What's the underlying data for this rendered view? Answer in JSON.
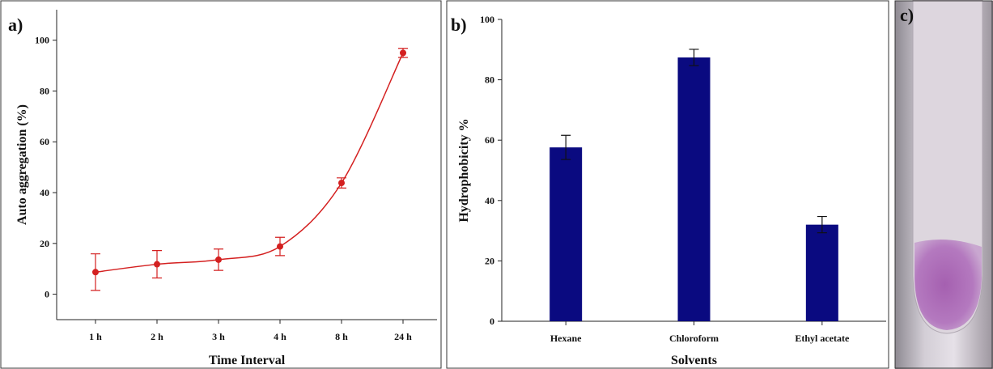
{
  "chart_data": [
    {
      "type": "line",
      "label": "a)",
      "x_label": "Time Interval",
      "y_label": "Auto aggregation (%)",
      "categories": [
        "1 h",
        "2 h",
        "3 h",
        "4 h",
        "8 h",
        "24 h"
      ],
      "values": [
        8.7,
        11.8,
        13.6,
        18.8,
        43.8,
        95
      ],
      "errors": [
        7.2,
        5.4,
        4.2,
        3.6,
        2,
        1.8
      ],
      "color": "#d42020",
      "ylim": [
        -10,
        112
      ],
      "yticks": [
        0,
        20,
        40,
        60,
        80,
        100
      ]
    },
    {
      "type": "bar",
      "label": "b)",
      "x_label": "Solvents",
      "y_label": "Hydrophobicity %",
      "categories": [
        "Hexane",
        "Chloroform",
        "Ethyl acetate"
      ],
      "values": [
        57.6,
        87.4,
        32
      ],
      "errors": [
        4,
        2.7,
        2.7
      ],
      "color": "#0a0a80",
      "ylim": [
        0,
        100
      ],
      "yticks": [
        0,
        20,
        40,
        60,
        80,
        100
      ]
    }
  ],
  "photo": {
    "label": "c)"
  }
}
